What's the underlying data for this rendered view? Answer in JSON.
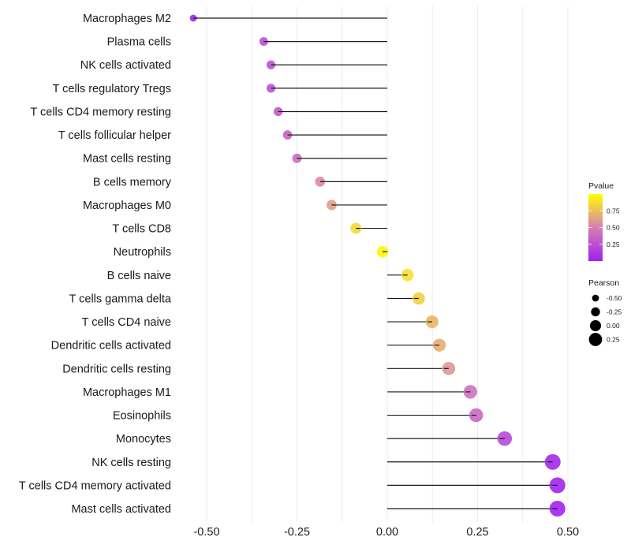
{
  "chart_data": {
    "type": "lollipop",
    "title": "",
    "xlabel": "",
    "ylabel": "",
    "xlim": [
      -0.55,
      0.5
    ],
    "xticks": [
      -0.5,
      -0.25,
      0.0,
      0.25,
      0.5
    ],
    "xtick_labels": [
      "-0.50",
      "-0.25",
      "0.00",
      "0.25",
      "0.50"
    ],
    "grid": true,
    "categories": [
      "Macrophages M2",
      "Plasma cells",
      "NK cells activated",
      "T cells regulatory  Tregs ",
      "T cells CD4 memory resting",
      "T cells follicular helper",
      "Mast cells resting",
      "B cells memory",
      "Macrophages M0",
      "T cells CD8",
      "Neutrophils",
      "B cells naive",
      "T cells gamma delta",
      "T cells CD4 naive",
      "Dendritic cells activated",
      "Dendritic cells resting",
      "Macrophages M1",
      "Eosinophils",
      "Monocytes",
      "NK cells resting",
      "T cells CD4 memory activated",
      "Mast cells activated"
    ],
    "series": [
      {
        "name": "Pearson",
        "values": [
          -0.537,
          -0.342,
          -0.322,
          -0.322,
          -0.302,
          -0.276,
          -0.25,
          -0.186,
          -0.154,
          -0.087,
          -0.013,
          0.056,
          0.087,
          0.124,
          0.144,
          0.17,
          0.23,
          0.246,
          0.325,
          0.458,
          0.471,
          0.471
        ]
      },
      {
        "name": "Pvalue",
        "values": [
          0.01,
          0.25,
          0.27,
          0.27,
          0.3,
          0.34,
          0.4,
          0.55,
          0.62,
          0.85,
          0.97,
          0.88,
          0.82,
          0.72,
          0.68,
          0.6,
          0.43,
          0.38,
          0.22,
          0.04,
          0.02,
          0.02
        ]
      }
    ],
    "legend": {
      "placement": "right",
      "color": {
        "title": "Pvalue",
        "tick_labels": [
          "0.25",
          "0.50",
          "0.75"
        ],
        "ticks": [
          0.25,
          0.5,
          0.75
        ],
        "range": [
          0.0,
          1.0
        ],
        "low_color": "#a020f0",
        "mid_color": "#d67fb3",
        "high_color": "#ffff00"
      },
      "size": {
        "title": "Pearson",
        "values": [
          -0.5,
          -0.25,
          0.0,
          0.25
        ],
        "labels": [
          "-0.50",
          "-0.25",
          "0.00",
          "0.25"
        ]
      }
    }
  }
}
